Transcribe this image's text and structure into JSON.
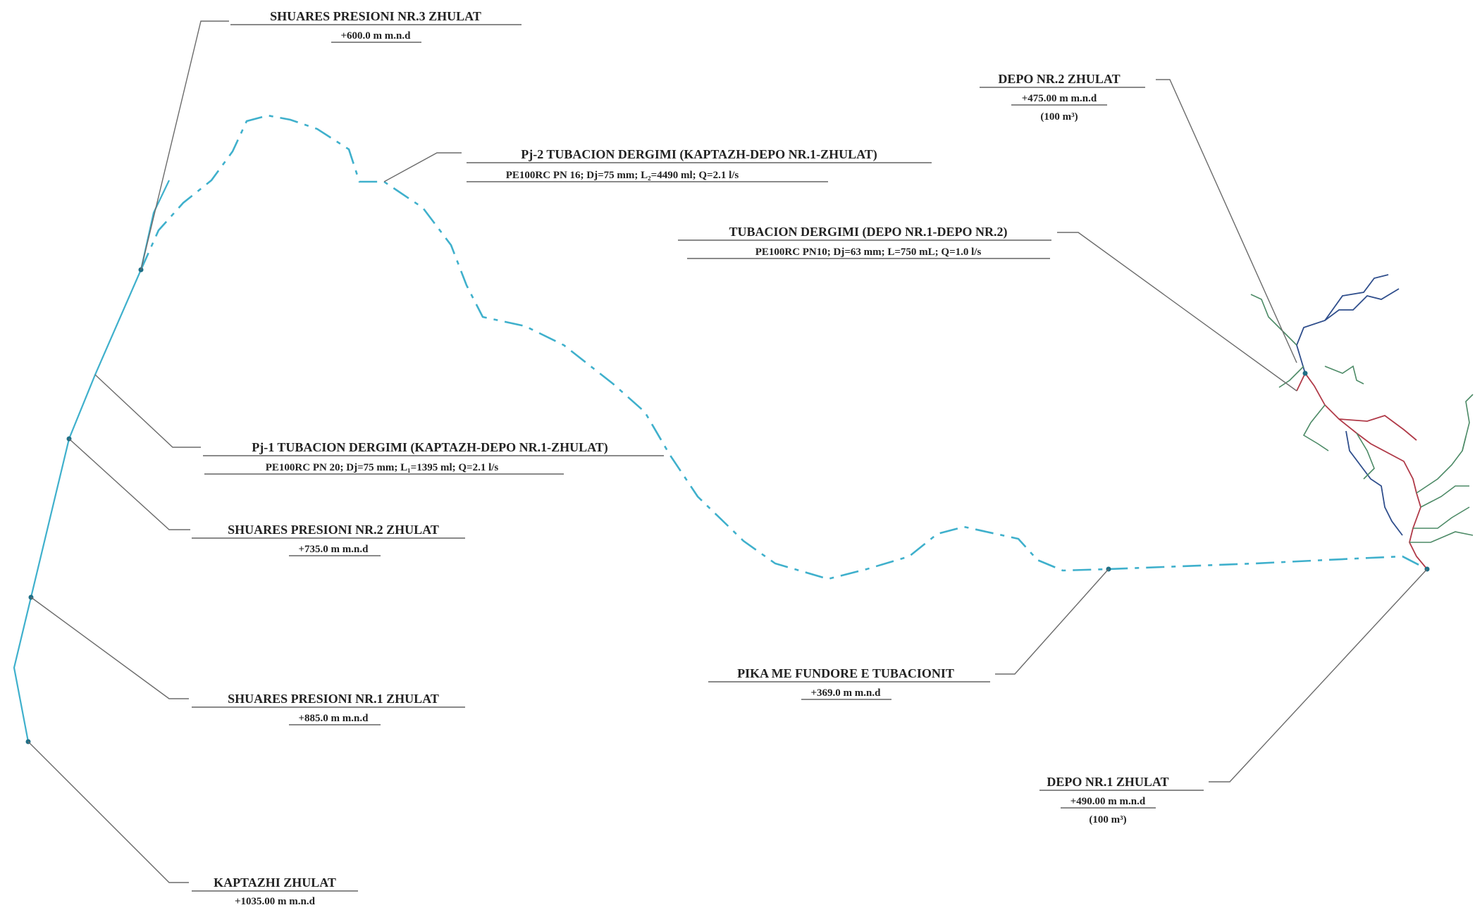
{
  "labels": {
    "sp3": {
      "line1": "SHUARES PRESIONI NR.3 ZHULAT",
      "line2": "+600.0 m m.n.d"
    },
    "depo2": {
      "line1": "DEPO NR.2  ZHULAT",
      "line2": "+475.00 m m.n.d",
      "line3": "(100 m³)"
    },
    "pj2": {
      "line1": "Pj-2 TUBACION DERGIMI (KAPTAZH-DEPO NR.1-ZHULAT)",
      "line2": "PE100RC PN 16; Dj=75 mm; L₂=4490 ml; Q=2.1 l/s"
    },
    "tub": {
      "line1": "TUBACION DERGIMI (DEPO NR.1-DEPO NR.2)",
      "line2": "PE100RC PN10; Dj=63 mm; L=750 mL; Q=1.0 l/s"
    },
    "pj1": {
      "line1": "Pj-1 TUBACION DERGIMI (KAPTAZH-DEPO NR.1-ZHULAT)",
      "line2": "PE100RC PN 20; Dj=75 mm; L₁=1395 ml; Q=2.1 l/s"
    },
    "sp2": {
      "line1": "SHUARES PRESIONI NR.2 ZHULAT",
      "line2": "+735.0 m m.n.d"
    },
    "pika": {
      "line1": "PIKA ME FUNDORE E TUBACIONIT",
      "line2": "+369.0 m m.n.d"
    },
    "sp1": {
      "line1": "SHUARES PRESIONI NR.1 ZHULAT",
      "line2": "+885.0 m m.n.d"
    },
    "depo1": {
      "line1": "DEPO NR.1  ZHULAT",
      "line2": "+490.00 m m.n.d",
      "line3": "(100 m³)"
    },
    "kaptazh": {
      "line1": "KAPTAZHI  ZHULAT",
      "line2": "+1035.00 m m.n.d"
    }
  },
  "colors": {
    "pipe": "#3fb0cc",
    "leader": "#6b6b6b",
    "text": "#222222",
    "network_red": "#b03a48",
    "network_blue": "#2f4e8c",
    "network_green": "#4c8a66"
  }
}
